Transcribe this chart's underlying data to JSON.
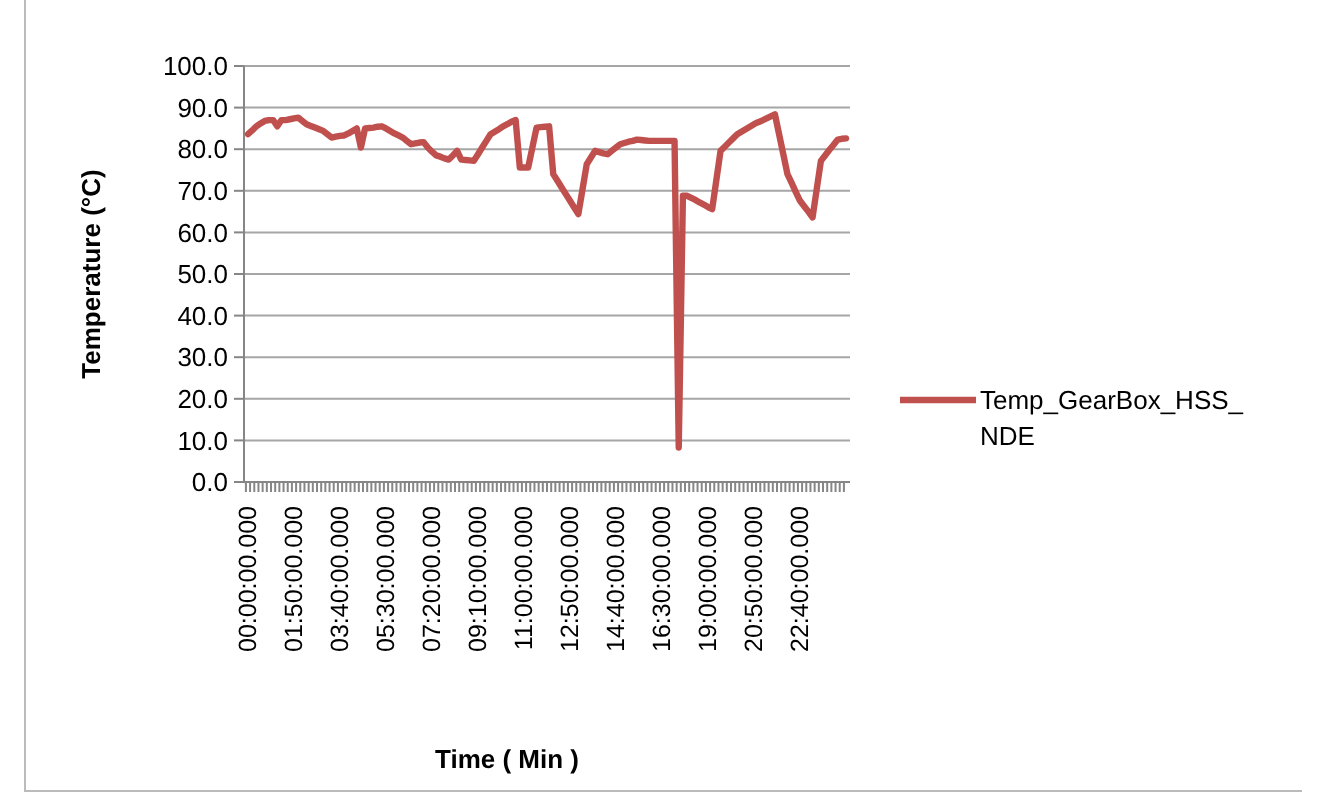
{
  "chart_data": {
    "type": "line",
    "xlabel": "Time ( Min )",
    "ylabel": "Temperature (°C)",
    "categories": [
      "00:00:00.000",
      null,
      null,
      null,
      null,
      null,
      null,
      null,
      null,
      null,
      null,
      "01:50:00.000",
      null,
      null,
      null,
      null,
      null,
      null,
      null,
      null,
      null,
      null,
      "03:40:00.000",
      null,
      null,
      null,
      null,
      null,
      null,
      null,
      null,
      null,
      null,
      "05:30:00.000",
      null,
      null,
      null,
      null,
      null,
      null,
      null,
      null,
      null,
      null,
      "07:20:00.000",
      null,
      null,
      null,
      null,
      null,
      null,
      null,
      null,
      null,
      null,
      "09:10:00.000",
      null,
      null,
      null,
      null,
      null,
      null,
      null,
      null,
      null,
      null,
      "11:00:00.000",
      null,
      null,
      null,
      null,
      null,
      null,
      null,
      null,
      null,
      null,
      "12:50:00.000",
      null,
      null,
      null,
      null,
      null,
      null,
      null,
      null,
      null,
      null,
      "14:40:00.000",
      null,
      null,
      null,
      null,
      null,
      null,
      null,
      null,
      null,
      null,
      "16:30:00.000",
      null,
      null,
      null,
      null,
      null,
      null,
      null,
      null,
      null,
      null,
      "19:00:00.000",
      null,
      null,
      null,
      null,
      null,
      null,
      null,
      null,
      null,
      null,
      "20:50:00.000",
      null,
      null,
      null,
      null,
      null,
      null,
      null,
      null,
      null,
      null,
      "22:40:00.000",
      null,
      null,
      null,
      null,
      null,
      null,
      null,
      null,
      null,
      null,
      null
    ],
    "series": [
      {
        "name": "Temp_GearBox_HSS_NDE",
        "color": "#c0504d",
        "values": [
          83.6,
          84.5,
          85.5,
          86.2,
          86.8,
          87,
          87,
          85.5,
          87,
          87,
          87.2,
          87.4,
          87.6,
          86.8,
          86,
          85.6,
          85.2,
          84.8,
          84.4,
          83.6,
          82.8,
          83,
          83.2,
          83.3,
          83.8,
          84.4,
          85,
          80.4,
          85,
          85.1,
          85.2,
          85.4,
          85.5,
          85,
          84.4,
          83.8,
          83.3,
          82.8,
          82,
          81.2,
          81.4,
          81.6,
          81.7,
          80.4,
          79.4,
          78.5,
          78.2,
          77.8,
          77.5,
          78.5,
          79.6,
          77.5,
          77.4,
          77.3,
          77.2,
          78.8,
          80.4,
          82,
          83.6,
          84.2,
          84.8,
          85.5,
          86,
          86.6,
          87,
          75.6,
          75.6,
          75.6,
          80.4,
          85.2,
          85.3,
          85.4,
          85.5,
          74,
          72.4,
          70.8,
          69.2,
          67.6,
          66,
          64.4,
          70.4,
          76.4,
          78,
          79.6,
          79.3,
          79,
          78.8,
          79.6,
          80.4,
          81.2,
          81.5,
          81.8,
          82,
          82.3,
          82.2,
          82.1,
          82,
          82,
          82,
          82,
          82,
          82,
          82,
          8.3,
          68.8,
          68.8,
          68.3,
          67.8,
          67.2,
          66.7,
          66.1,
          65.6,
          72.6,
          79.6,
          80.6,
          81.6,
          82.6,
          83.6,
          84.2,
          84.8,
          85.4,
          86,
          86.5,
          86.9,
          87.4,
          87.9,
          88.4,
          83.6,
          78.8,
          74,
          71.9,
          69.7,
          67.6,
          66.3,
          65,
          63.6,
          70.4,
          77.2,
          78.5,
          79.8,
          81,
          82.3,
          82.5,
          82.6
        ]
      }
    ],
    "ylim": [
      0,
      100
    ],
    "yticks": [
      {
        "value": 0,
        "label": "0.0"
      },
      {
        "value": 10,
        "label": "10.0"
      },
      {
        "value": 20,
        "label": "20.0"
      },
      {
        "value": 30,
        "label": "30.0"
      },
      {
        "value": 40,
        "label": "40.0"
      },
      {
        "value": 50,
        "label": "50.0"
      },
      {
        "value": 60,
        "label": "60.0"
      },
      {
        "value": 70,
        "label": "70.0"
      },
      {
        "value": 80,
        "label": "80.0"
      },
      {
        "value": 90,
        "label": "90.0"
      },
      {
        "value": 100,
        "label": "100.0"
      }
    ],
    "grid": "y",
    "legend": "right",
    "marker": "none",
    "line_style": "solid"
  }
}
